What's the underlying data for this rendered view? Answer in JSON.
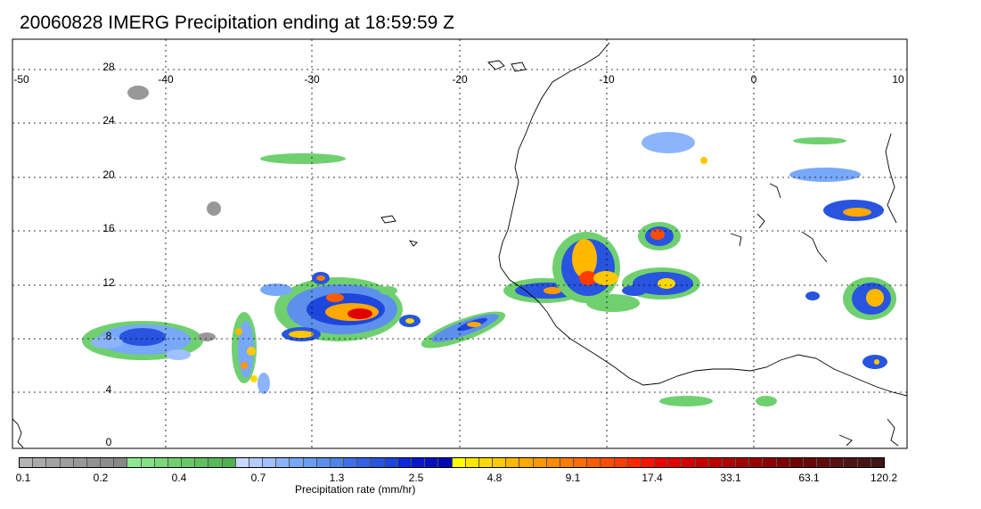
{
  "title": "20060828 IMERG Precipitation ending at 18:59:59 Z",
  "map": {
    "lon_labels": [
      "-50",
      "-40",
      "-30",
      "-20",
      "-10",
      "0",
      "10"
    ],
    "lat_labels": [
      "28",
      "24",
      "20",
      "16",
      "12",
      "8",
      "4",
      "0"
    ],
    "lon_range": [
      -50,
      10
    ],
    "lat_range": [
      -0.5,
      29.5
    ],
    "grid": true
  },
  "colorbar": {
    "title": "Precipitation rate (mm/hr)",
    "tick_labels": [
      "0.1",
      "0.2",
      "0.4",
      "0.7",
      "1.3",
      "2.5",
      "4.8",
      "9.1",
      "17.4",
      "33.1",
      "63.1",
      "120.2"
    ],
    "colors": [
      "#b4b4b4",
      "#aaaaaa",
      "#a4a4a4",
      "#9e9e9e",
      "#989898",
      "#939393",
      "#8d8d8d",
      "#888888",
      "#8ee88e",
      "#84e084",
      "#7ad87a",
      "#70d070",
      "#68c868",
      "#60c060",
      "#58b858",
      "#50b050",
      "#c8d8ff",
      "#b4ccff",
      "#a0c0ff",
      "#8cb4fc",
      "#78a8f8",
      "#6a9cf2",
      "#5c90ec",
      "#4e84e6",
      "#4070e8",
      "#3462e4",
      "#2854e0",
      "#1c46dc",
      "#0c26d8",
      "#0818cc",
      "#0410c0",
      "#0008b4",
      "#ffff00",
      "#ffe800",
      "#ffd800",
      "#ffc800",
      "#ffb800",
      "#ffa800",
      "#ff9800",
      "#ff8c00",
      "#ff7c00",
      "#ff6c00",
      "#ff5c00",
      "#ff4c00",
      "#ff3c00",
      "#ff2800",
      "#f81400",
      "#f00000",
      "#e00000",
      "#d40000",
      "#c80000",
      "#bc0000",
      "#b00000",
      "#a40000",
      "#980000",
      "#8c0000",
      "#7e0000",
      "#720000",
      "#680808",
      "#600c0c",
      "#581010",
      "#501414",
      "#481414",
      "#401414"
    ]
  }
}
